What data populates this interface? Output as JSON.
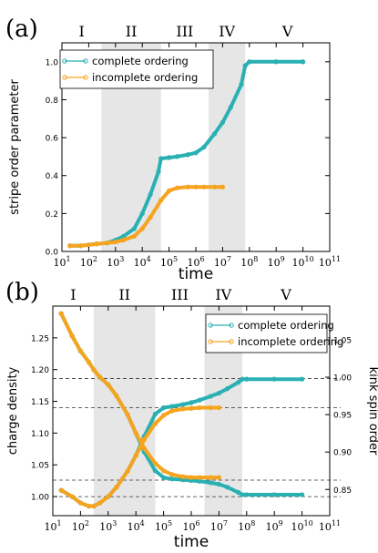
{
  "chart_data": [
    {
      "type": "line",
      "panel_label": "(a)",
      "phase_labels": [
        "I",
        "II",
        "III",
        "IV",
        "V"
      ],
      "phase_boundaries": [
        300,
        50000,
        3000000,
        70000000
      ],
      "shaded_phases": [
        "II",
        "IV"
      ],
      "xlabel": "time",
      "ylabel": "stripe order parameter",
      "xscale": "log",
      "xlim": [
        10,
        100000000000
      ],
      "ylim": [
        0.0,
        1.1
      ],
      "xticks": [
        "10^1",
        "10^2",
        "10^3",
        "10^4",
        "10^5",
        "10^6",
        "10^7",
        "10^8",
        "10^9",
        "10^10",
        "10^11"
      ],
      "yticks": [
        "0.0",
        "0.2",
        "0.4",
        "0.6",
        "0.8",
        "1.0"
      ],
      "legend_position": "top-left",
      "series": [
        {
          "name": "complete ordering",
          "color": "#2ab0b3",
          "x": [
            20,
            50,
            100,
            200,
            500,
            1000,
            2000,
            5000,
            10000,
            20000,
            40000,
            50000,
            100000,
            200000,
            500000,
            1000000,
            2000000,
            5000000,
            10000000,
            20000000,
            50000000,
            70000000,
            100000000,
            1000000000,
            10000000000
          ],
          "values": [
            0.03,
            0.03,
            0.035,
            0.04,
            0.045,
            0.06,
            0.08,
            0.12,
            0.2,
            0.3,
            0.42,
            0.49,
            0.495,
            0.5,
            0.51,
            0.52,
            0.55,
            0.62,
            0.68,
            0.76,
            0.88,
            0.98,
            1.0,
            1.0,
            1.0
          ]
        },
        {
          "name": "incomplete ordering",
          "color": "#f5a41f",
          "x": [
            20,
            50,
            100,
            200,
            500,
            1000,
            2000,
            5000,
            10000,
            20000,
            50000,
            100000,
            200000,
            500000,
            1000000,
            2000000,
            5000000,
            10000000
          ],
          "values": [
            0.03,
            0.03,
            0.035,
            0.04,
            0.045,
            0.05,
            0.06,
            0.08,
            0.12,
            0.18,
            0.27,
            0.32,
            0.335,
            0.34,
            0.34,
            0.34,
            0.34,
            0.34
          ]
        }
      ]
    },
    {
      "type": "line",
      "panel_label": "(b)",
      "phase_labels": [
        "I",
        "II",
        "III",
        "IV",
        "V"
      ],
      "phase_boundaries": [
        300,
        50000,
        3000000,
        70000000
      ],
      "shaded_phases": [
        "II",
        "IV"
      ],
      "xlabel": "time",
      "ylabel": "charge density",
      "y2label": "kink spin order",
      "xscale": "log",
      "xlim": [
        10,
        100000000000
      ],
      "ylim": [
        0.97,
        1.3
      ],
      "y2lim": [
        0.815,
        1.095
      ],
      "xticks": [
        "10^1",
        "10^2",
        "10^3",
        "10^4",
        "10^5",
        "10^6",
        "10^7",
        "10^8",
        "10^9",
        "10^10",
        "10^11"
      ],
      "yticks": [
        "1.00",
        "1.05",
        "1.10",
        "1.15",
        "1.20",
        "1.25"
      ],
      "y2ticks": [
        "0.85",
        "0.90",
        "0.95",
        "1.00",
        "1.05"
      ],
      "legend_position": "top-right",
      "reference_lines_y": [
        1.0,
        1.026,
        1.14,
        1.186
      ],
      "series": [
        {
          "name": "complete ordering",
          "role": "charge density",
          "color": "#2ab0b3",
          "x": [
            20,
            50,
            100,
            200,
            300,
            500,
            1000,
            2000,
            5000,
            10000,
            20000,
            50000,
            100000,
            200000,
            500000,
            1000000,
            2000000,
            5000000,
            10000000,
            20000000,
            50000000,
            70000000,
            100000000,
            1000000000,
            10000000000
          ],
          "values": [
            1.01,
            1.0,
            0.99,
            0.985,
            0.985,
            0.99,
            1.0,
            1.015,
            1.04,
            1.065,
            1.095,
            1.13,
            1.14,
            1.142,
            1.145,
            1.148,
            1.152,
            1.158,
            1.163,
            1.17,
            1.18,
            1.185,
            1.185,
            1.185,
            1.185
          ]
        },
        {
          "name": "",
          "role": "kink spin order",
          "color": "#2ab0b3",
          "x": [
            20,
            50,
            100,
            200,
            300,
            500,
            1000,
            2000,
            5000,
            10000,
            20000,
            50000,
            100000,
            200000,
            500000,
            1000000,
            2000000,
            5000000,
            10000000,
            20000000,
            50000000,
            70000000,
            100000000,
            1000000000,
            10000000000
          ],
          "values": [
            1.085,
            1.055,
            1.035,
            1.02,
            1.01,
            1.0,
            0.99,
            0.975,
            0.95,
            0.925,
            0.9,
            0.875,
            0.866,
            0.864,
            0.863,
            0.862,
            0.861,
            0.859,
            0.857,
            0.853,
            0.846,
            0.843,
            0.843,
            0.843,
            0.843
          ]
        },
        {
          "name": "incomplete ordering",
          "role": "charge density",
          "color": "#f5a41f",
          "x": [
            20,
            50,
            100,
            200,
            300,
            500,
            1000,
            2000,
            5000,
            10000,
            20000,
            50000,
            100000,
            200000,
            500000,
            1000000,
            2000000,
            5000000,
            10000000
          ],
          "values": [
            1.01,
            1.0,
            0.99,
            0.985,
            0.985,
            0.99,
            1.0,
            1.015,
            1.04,
            1.065,
            1.09,
            1.115,
            1.128,
            1.135,
            1.138,
            1.139,
            1.14,
            1.14,
            1.14
          ]
        },
        {
          "name": "",
          "role": "kink spin order",
          "color": "#f5a41f",
          "x": [
            20,
            50,
            100,
            200,
            300,
            500,
            1000,
            2000,
            5000,
            10000,
            20000,
            50000,
            100000,
            200000,
            500000,
            1000000,
            2000000,
            5000000,
            10000000
          ],
          "values": [
            1.085,
            1.055,
            1.035,
            1.02,
            1.01,
            1.0,
            0.99,
            0.975,
            0.95,
            0.925,
            0.905,
            0.885,
            0.875,
            0.87,
            0.867,
            0.866,
            0.866,
            0.866,
            0.866
          ]
        }
      ]
    }
  ]
}
